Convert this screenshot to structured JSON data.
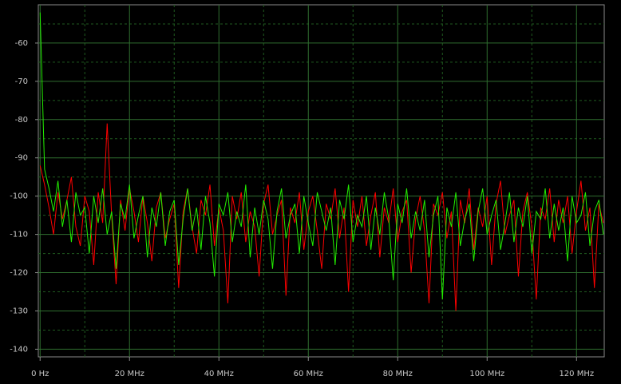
{
  "chart_data": {
    "type": "line",
    "x": [
      0,
      1,
      2,
      3,
      4,
      5,
      6,
      7,
      8,
      9,
      10,
      11,
      12,
      13,
      14,
      15,
      16,
      17,
      18,
      19,
      20,
      21,
      22,
      23,
      24,
      25,
      26,
      27,
      28,
      29,
      30,
      31,
      32,
      33,
      34,
      35,
      36,
      37,
      38,
      39,
      40,
      41,
      42,
      43,
      44,
      45,
      46,
      47,
      48,
      49,
      50,
      51,
      52,
      53,
      54,
      55,
      56,
      57,
      58,
      59,
      60,
      61,
      62,
      63,
      64,
      65,
      66,
      67,
      68,
      69,
      70,
      71,
      72,
      73,
      74,
      75,
      76,
      77,
      78,
      79,
      80,
      81,
      82,
      83,
      84,
      85,
      86,
      87,
      88,
      89,
      90,
      91,
      92,
      93,
      94,
      95,
      96,
      97,
      98,
      99,
      100,
      101,
      102,
      103,
      104,
      105,
      106,
      107,
      108,
      109,
      110,
      111,
      112,
      113,
      114,
      115,
      116,
      117,
      118,
      119,
      120,
      121,
      122,
      123,
      124,
      125,
      126
    ],
    "series": [
      {
        "color": "#ff0000",
        "values": [
          -92,
          -97,
          -103,
          -110,
          -99,
          -106,
          -101,
          -95,
          -108,
          -113,
          -100,
          -104,
          -118,
          -99,
          -107,
          -81,
          -105,
          -123,
          -101,
          -109,
          -98,
          -104,
          -112,
          -100,
          -107,
          -117,
          -103,
          -99,
          -111,
          -106,
          -102,
          -124,
          -104,
          -98,
          -108,
          -115,
          -101,
          -105,
          -97,
          -113,
          -103,
          -109,
          -128,
          -100,
          -106,
          -99,
          -112,
          -104,
          -108,
          -121,
          -102,
          -97,
          -110,
          -105,
          -101,
          -126,
          -103,
          -107,
          -99,
          -114,
          -104,
          -100,
          -109,
          -119,
          -102,
          -106,
          -98,
          -111,
          -103,
          -125,
          -101,
          -108,
          -100,
          -113,
          -105,
          -99,
          -116,
          -103,
          -107,
          -98,
          -112,
          -104,
          -101,
          -120,
          -106,
          -100,
          -109,
          -128,
          -102,
          -105,
          -99,
          -111,
          -104,
          -130,
          -101,
          -107,
          -98,
          -114,
          -103,
          -108,
          -100,
          -118,
          -102,
          -96,
          -110,
          -105,
          -101,
          -121,
          -104,
          -99,
          -108,
          -127,
          -103,
          -106,
          -98,
          -112,
          -101,
          -107,
          -100,
          -115,
          -104,
          -96,
          -109,
          -103,
          -124,
          -102,
          -107
        ]
      },
      {
        "color": "#22ee00",
        "values": [
          -52,
          -93,
          -98,
          -104,
          -96,
          -108,
          -101,
          -112,
          -99,
          -105,
          -103,
          -115,
          -100,
          -107,
          -98,
          -110,
          -104,
          -119,
          -102,
          -106,
          -97,
          -111,
          -105,
          -100,
          -116,
          -103,
          -108,
          -99,
          -113,
          -104,
          -101,
          -118,
          -106,
          -98,
          -109,
          -103,
          -114,
          -100,
          -107,
          -121,
          -102,
          -105,
          -99,
          -112,
          -104,
          -108,
          -97,
          -116,
          -103,
          -110,
          -101,
          -106,
          -119,
          -104,
          -98,
          -111,
          -105,
          -102,
          -115,
          -100,
          -107,
          -113,
          -99,
          -104,
          -109,
          -103,
          -118,
          -101,
          -106,
          -97,
          -112,
          -105,
          -108,
          -100,
          -114,
          -103,
          -110,
          -99,
          -106,
          -122,
          -102,
          -107,
          -98,
          -111,
          -104,
          -109,
          -101,
          -116,
          -105,
          -100,
          -127,
          -103,
          -108,
          -99,
          -113,
          -106,
          -102,
          -117,
          -104,
          -98,
          -110,
          -105,
          -101,
          -114,
          -107,
          -99,
          -112,
          -103,
          -108,
          -100,
          -115,
          -104,
          -106,
          -98,
          -111,
          -102,
          -109,
          -103,
          -117,
          -100,
          -107,
          -105,
          -99,
          -113,
          -104,
          -101,
          -110
        ]
      }
    ],
    "xlim": [
      -0.4,
      126.2
    ],
    "ylim": [
      -142,
      -50
    ],
    "xticks": [
      {
        "value": 0,
        "label": "0 Hz"
      },
      {
        "value": 20,
        "label": "20 MHz"
      },
      {
        "value": 40,
        "label": "40 MHz"
      },
      {
        "value": 60,
        "label": "60 MHz"
      },
      {
        "value": 80,
        "label": "80 MHz"
      },
      {
        "value": 100,
        "label": "100 MHz"
      },
      {
        "value": 120,
        "label": "120 MHz"
      }
    ],
    "xminorticks": [
      10,
      30,
      50,
      70,
      90,
      110
    ],
    "yticks": [
      -60,
      -70,
      -80,
      -90,
      -100,
      -110,
      -120,
      -130,
      -140
    ],
    "yminorticks": [
      -55,
      -65,
      -75,
      -85,
      -95,
      -105,
      -115,
      -125,
      -135
    ],
    "grid": true
  }
}
